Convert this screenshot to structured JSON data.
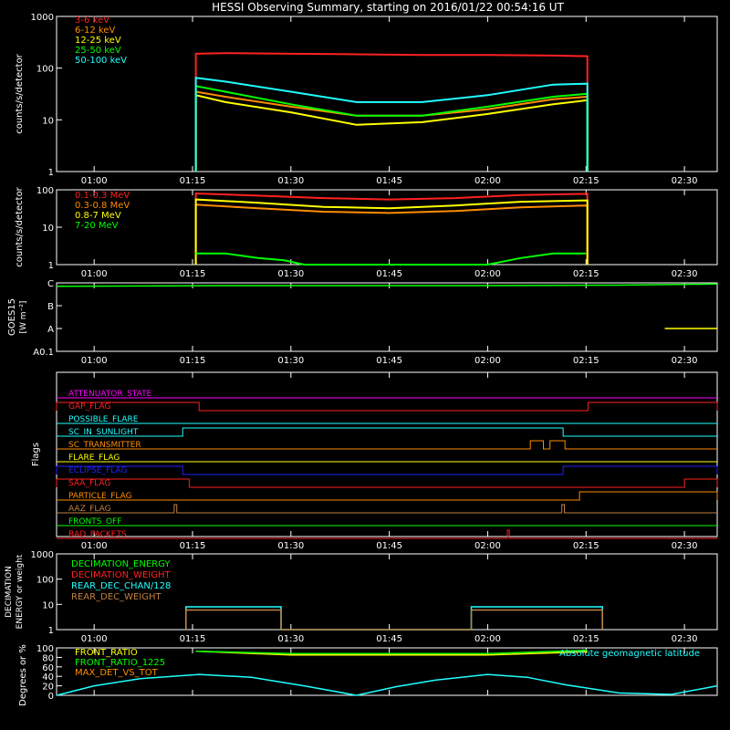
{
  "title": "HESSI Observing Summary, starting on 2016/01/22 00:54:16 UT",
  "colors": {
    "background": "#000000",
    "axes": "#ffffff",
    "red": "#ff2020",
    "orange": "#ff8c00",
    "yellow": "#ffff00",
    "green": "#00ff00",
    "cyan": "#20ffff",
    "magenta": "#ff00ff",
    "blue": "#2020ff",
    "brown": "#c08040"
  },
  "time_axis": {
    "tick_labels": [
      "01:00",
      "01:15",
      "01:30",
      "01:45",
      "02:00",
      "02:15",
      "02:30"
    ],
    "tick_minutes": [
      60,
      75,
      90,
      105,
      120,
      135,
      150
    ],
    "range_minutes": [
      54.27,
      155
    ]
  },
  "chart_data": [
    {
      "type": "line",
      "panel": "count-rates-low",
      "ylabel": "counts/s/detector",
      "yscale": "log",
      "ylim": [
        1,
        1000
      ],
      "ytick_labels": [
        "1",
        "10",
        "100",
        "1000"
      ],
      "ytick_values": [
        1,
        10,
        100,
        1000
      ],
      "series": [
        {
          "name": "3-6 keV",
          "color": "#ff2020",
          "x": [
            75.5,
            80,
            90,
            100,
            110,
            120,
            130,
            135.2
          ],
          "y": [
            190,
            195,
            190,
            185,
            180,
            180,
            175,
            170
          ]
        },
        {
          "name": "6-12 keV",
          "color": "#ff8c00",
          "x": [
            75.5,
            80,
            90,
            100,
            110,
            120,
            130,
            135.2
          ],
          "y": [
            35,
            28,
            18,
            12,
            12,
            16,
            25,
            28
          ]
        },
        {
          "name": "12-25 keV",
          "color": "#ffff00",
          "x": [
            75.5,
            80,
            90,
            100,
            110,
            120,
            130,
            135.2
          ],
          "y": [
            30,
            22,
            14,
            8,
            9,
            13,
            20,
            24
          ]
        },
        {
          "name": "25-50 keV",
          "color": "#00ff00",
          "x": [
            75.5,
            80,
            90,
            100,
            110,
            120,
            130,
            135.2
          ],
          "y": [
            45,
            35,
            20,
            12,
            12,
            18,
            28,
            32
          ]
        },
        {
          "name": "50-100 keV",
          "color": "#20ffff",
          "x": [
            75.5,
            80,
            90,
            100,
            110,
            120,
            130,
            135.2
          ],
          "y": [
            65,
            55,
            35,
            22,
            22,
            30,
            48,
            50
          ]
        }
      ]
    },
    {
      "type": "line",
      "panel": "count-rates-high",
      "ylabel": "counts/s/detector",
      "yscale": "log",
      "ylim": [
        1,
        100
      ],
      "ytick_labels": [
        "1",
        "10",
        "100"
      ],
      "ytick_values": [
        1,
        10,
        100
      ],
      "series": [
        {
          "name": "0.1-0.3 MeV",
          "color": "#ff2020",
          "x": [
            75.5,
            85,
            95,
            105,
            115,
            125,
            135.2
          ],
          "y": [
            80,
            70,
            60,
            55,
            60,
            72,
            78
          ]
        },
        {
          "name": "0.3-0.8 MeV",
          "color": "#ff8c00",
          "x": [
            75.5,
            85,
            95,
            105,
            115,
            125,
            135.2
          ],
          "y": [
            40,
            32,
            26,
            24,
            27,
            34,
            38
          ]
        },
        {
          "name": "0.8-7 MeV",
          "color": "#ffff00",
          "x": [
            75.5,
            85,
            95,
            105,
            115,
            125,
            135.2
          ],
          "y": [
            55,
            45,
            35,
            32,
            38,
            48,
            52
          ]
        },
        {
          "name": "7-20 MeV",
          "color": "#00ff00",
          "x": [
            75.5,
            80,
            85,
            89,
            92,
            120,
            125,
            130,
            135
          ],
          "y": [
            2,
            2,
            1.5,
            1.3,
            1,
            1,
            1.5,
            2,
            2
          ]
        }
      ]
    },
    {
      "type": "line",
      "panel": "goes",
      "ylabel": "GOES15",
      "ylabel_units": "[W m⁻²]",
      "ytick_labels": [
        "A0.1",
        "A",
        "B",
        "C"
      ],
      "ytick_values": [
        -8,
        -7,
        -6,
        -5
      ],
      "ylim": [
        -8,
        -5
      ],
      "series": [
        {
          "name": "GOES long",
          "color": "#00ff00",
          "x": [
            54.27,
            80,
            100,
            120,
            140,
            155
          ],
          "y": [
            -5.15,
            -5.12,
            -5.12,
            -5.12,
            -5.1,
            -5.05
          ]
        },
        {
          "name": "GOES short",
          "color": "#ffff00",
          "x": [
            147,
            155
          ],
          "y": [
            -7.0,
            -7.0
          ]
        }
      ]
    },
    {
      "type": "line",
      "panel": "flags",
      "ylabel": "Flags",
      "flags": [
        {
          "name": "ATTENUATOR_STATE",
          "color": "#ff00ff",
          "segments": []
        },
        {
          "name": "GAP_FLAG",
          "color": "#ff2020",
          "segments": [
            [
              54.27,
              76
            ],
            [
              135.3,
              155
            ]
          ]
        },
        {
          "name": "POSSIBLE_FLARE",
          "color": "#20ffff",
          "segments": []
        },
        {
          "name": "SC_IN_SUNLIGHT",
          "color": "#20ffff",
          "segments": [
            [
              73.5,
              131.5
            ]
          ]
        },
        {
          "name": "SC_TRANSMITTER",
          "color": "#ff8c00",
          "segments": [
            [
              126.5,
              128.5
            ],
            [
              129.5,
              131.8
            ]
          ]
        },
        {
          "name": "FLARE_FLAG",
          "color": "#ffff00",
          "segments": []
        },
        {
          "name": "ECLIPSE_FLAG",
          "color": "#2020ff",
          "segments": [
            [
              54.27,
              73.5
            ],
            [
              131.5,
              155
            ]
          ]
        },
        {
          "name": "SAA_FLAG",
          "color": "#ff2020",
          "segments": [
            [
              54.27,
              74.5
            ],
            [
              150,
              155
            ]
          ]
        },
        {
          "name": "PARTICLE_FLAG",
          "color": "#ff8c00",
          "segments": [
            [
              134,
              155
            ]
          ]
        },
        {
          "name": "AAZ_FLAG",
          "color": "#c08040",
          "segments": [
            [
              72.2,
              72.6
            ],
            [
              131.3,
              131.7
            ]
          ]
        },
        {
          "name": "FRONTS_OFF",
          "color": "#00ff00",
          "segments": []
        },
        {
          "name": "BAD_PACKETS",
          "color": "#ff2020",
          "segments": [
            [
              123,
              123.3
            ]
          ]
        }
      ]
    },
    {
      "type": "line",
      "panel": "decimation",
      "ylabel": "DECIMATION ENERGY or weight",
      "yscale": "log",
      "ylim": [
        1,
        1000
      ],
      "ytick_labels": [
        "1",
        "10",
        "100",
        "1000"
      ],
      "ytick_values": [
        1,
        10,
        100,
        1000
      ],
      "series": [
        {
          "name": "DECIMATION_ENERGY",
          "color": "#00ff00",
          "x": [],
          "y": []
        },
        {
          "name": "DECIMATION_WEIGHT",
          "color": "#ff2020",
          "x": [],
          "y": []
        },
        {
          "name": "REAR_DEC_CHAN/128",
          "color": "#20ffff",
          "x": [
            74,
            74,
            88.5,
            88.5,
            117.5,
            117.5,
            137.5,
            137.5
          ],
          "y": [
            1,
            8,
            8,
            1,
            1,
            8,
            8,
            1
          ]
        },
        {
          "name": "REAR_DEC_WEIGHT",
          "color": "#c08040",
          "x": [
            74,
            74,
            88.5,
            88.5,
            117.5,
            117.5,
            137.5,
            137.5
          ],
          "y": [
            1,
            6,
            6,
            1,
            1,
            6,
            6,
            1
          ]
        }
      ]
    },
    {
      "type": "line",
      "panel": "ratios",
      "ylabel": "Degrees or %",
      "ylim": [
        0,
        100
      ],
      "ytick_labels": [
        "0",
        "20",
        "40",
        "60",
        "80",
        "100"
      ],
      "ytick_values": [
        0,
        20,
        40,
        60,
        80,
        100
      ],
      "series": [
        {
          "name": "FRONT_RATIO",
          "color": "#ffff00",
          "x": [
            75.5,
            90,
            120,
            135.2
          ],
          "y": [
            93,
            85,
            85,
            92
          ]
        },
        {
          "name": "FRONT_RATIO_1225",
          "color": "#00ff00",
          "x": [
            75.5,
            90,
            120,
            135.2
          ],
          "y": [
            93,
            88,
            88,
            95
          ]
        },
        {
          "name": "MAX_DET_VS_TOT",
          "color": "#ff8c00",
          "x": [],
          "y": []
        },
        {
          "name": "Absolute geomagnetic latitude",
          "color": "#20ffff",
          "x": [
            54.27,
            60,
            67,
            76,
            84,
            92,
            96,
            100,
            106,
            112,
            120,
            126,
            132,
            140,
            148,
            155
          ],
          "y": [
            0,
            20,
            35,
            44,
            38,
            20,
            10,
            0,
            18,
            32,
            44,
            38,
            22,
            5,
            2,
            20
          ]
        }
      ]
    }
  ]
}
